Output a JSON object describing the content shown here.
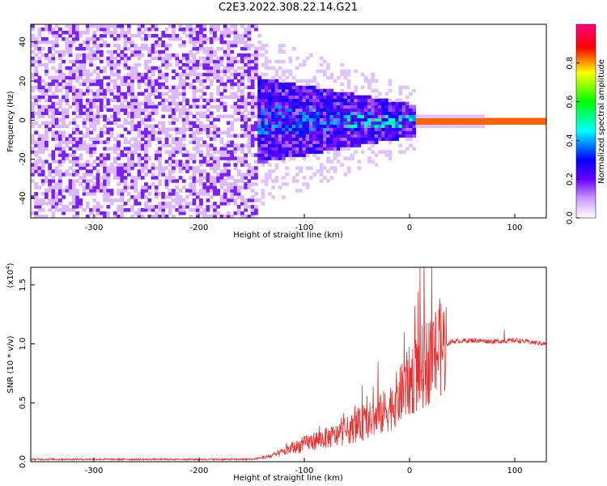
{
  "page": {
    "title": "C2E3.2022.308.22.14.G21"
  },
  "chart_data": [
    {
      "type": "heatmap",
      "title": "C2E3.2022.308.22.14.G21",
      "xlabel": "Height of straight line (km)",
      "ylabel": "Frequency (Hz)",
      "xlim": [
        -360,
        130
      ],
      "ylim": [
        -50,
        49
      ],
      "x_ticks": [
        -300,
        -200,
        -100,
        0,
        100
      ],
      "x_tick_labels": [
        "-300",
        "-200",
        "-100",
        "0",
        "100"
      ],
      "y_ticks": [
        -40,
        -20,
        0,
        20,
        40
      ],
      "y_tick_labels": [
        "-40",
        "-20",
        "0",
        "20",
        "40"
      ],
      "description_regions": [
        {
          "x": [
            -360,
            -145
          ],
          "pattern": "uniform noise",
          "amplitude": 0.1
        },
        {
          "x": [
            -145,
            5
          ],
          "pattern": "converging band",
          "amplitude": 0.3
        },
        {
          "x": [
            5,
            130
          ],
          "pattern": "narrow line at 0 Hz",
          "amplitude": 0.85
        }
      ],
      "colorbar": {
        "label": "Normalized spectral amplitude",
        "range": [
          0,
          1
        ],
        "ticks": [
          0.0,
          0.2,
          0.4,
          0.6,
          0.8
        ],
        "tick_labels": [
          "0.0",
          "0.2",
          "0.4",
          "0.6",
          "0.8"
        ],
        "colormap": "rainbow (white-purple-blue-cyan-green-yellow-red-magenta)"
      }
    },
    {
      "type": "line",
      "xlabel": "Height of straight line (km)",
      "ylabel": "SNR (10 * v/v)",
      "yscale_label": "(x10",
      "yscale_exp": "4",
      "yscale_close": ")",
      "xlim": [
        -360,
        130
      ],
      "ylim": [
        0,
        1.65
      ],
      "x_ticks": [
        -300,
        -200,
        -100,
        0,
        100
      ],
      "x_tick_labels": [
        "-300",
        "-200",
        "-100",
        "0",
        "100"
      ],
      "y_ticks": [
        0.0,
        0.5,
        1.0,
        1.5
      ],
      "y_tick_labels": [
        "0.0",
        "0.5",
        "1.0",
        "1.5"
      ],
      "series": [
        {
          "color": "#e83030",
          "profile": [
            [
              -360,
              0.02
            ],
            [
              -300,
              0.02
            ],
            [
              -200,
              0.02
            ],
            [
              -150,
              0.02
            ],
            [
              -130,
              0.05
            ],
            [
              -110,
              0.12
            ],
            [
              -90,
              0.18
            ],
            [
              -70,
              0.22
            ],
            [
              -50,
              0.3
            ],
            [
              -30,
              0.38
            ],
            [
              -20,
              0.45
            ],
            [
              -10,
              0.55
            ],
            [
              0,
              0.68
            ],
            [
              10,
              0.78
            ],
            [
              20,
              0.88
            ],
            [
              30,
              0.97
            ],
            [
              40,
              1.02
            ],
            [
              60,
              1.03
            ],
            [
              80,
              1.02
            ],
            [
              100,
              1.03
            ],
            [
              130,
              1.0
            ]
          ],
          "peaks": [
            [
              -45,
              0.65
            ],
            [
              -30,
              0.85
            ],
            [
              -5,
              1.1
            ],
            [
              5,
              1.32
            ],
            [
              10,
              1.65
            ],
            [
              90,
              1.12
            ]
          ]
        }
      ]
    }
  ]
}
